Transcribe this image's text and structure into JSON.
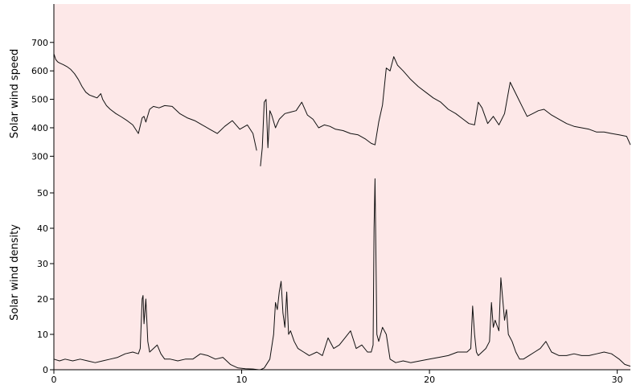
{
  "chart_data": {
    "type": "line",
    "background_color": "#fde8e8",
    "line_color": "#111111",
    "x_axis": {
      "ticks": [
        0,
        10,
        20,
        30
      ],
      "range": [
        0,
        30.7
      ]
    },
    "panels": [
      {
        "id": "speed",
        "ylabel": "Solar wind speed",
        "ticks": [
          300,
          400,
          500,
          600,
          700
        ],
        "range": [
          270,
          770
        ],
        "x": [
          0,
          0.1,
          0.2,
          0.3,
          0.5,
          0.7,
          0.9,
          1.1,
          1.3,
          1.5,
          1.7,
          1.9,
          2.1,
          2.3,
          2.5,
          2.6,
          2.8,
          3.0,
          3.3,
          3.6,
          3.9,
          4.2,
          4.5,
          4.7,
          4.8,
          4.9,
          5.1,
          5.3,
          5.6,
          5.9,
          6.3,
          6.7,
          7.1,
          7.5,
          7.9,
          8.3,
          8.7,
          9.1,
          9.5,
          9.9,
          10.3,
          10.6,
          10.8
        ],
        "y": [
          660,
          640,
          632,
          628,
          622,
          615,
          605,
          590,
          570,
          545,
          525,
          515,
          510,
          505,
          520,
          500,
          478,
          465,
          450,
          438,
          425,
          410,
          380,
          435,
          440,
          420,
          465,
          475,
          470,
          478,
          475,
          450,
          435,
          425,
          410,
          395,
          380,
          405,
          425,
          395,
          410,
          380,
          320
        ],
        "x2": [
          11.0,
          11.1,
          11.2,
          11.3,
          11.4,
          11.5,
          11.6,
          11.8,
          12.0,
          12.3,
          12.6,
          12.9,
          13.2,
          13.5,
          13.8,
          14.1,
          14.4,
          14.7,
          15.0,
          15.4,
          15.8,
          16.2,
          16.6,
          16.9,
          17.1,
          17.3,
          17.5,
          17.7,
          17.9,
          18.1,
          18.3,
          18.6,
          19.0,
          19.4,
          19.8,
          20.2,
          20.6,
          21.0,
          21.4,
          21.8,
          22.1,
          22.4,
          22.6,
          22.8,
          23.1,
          23.4,
          23.7,
          24.0,
          24.3,
          24.6,
          24.9,
          25.2,
          25.5,
          25.8,
          26.1,
          26.5,
          26.9,
          27.3,
          27.7,
          28.1,
          28.5,
          28.9,
          29.3,
          29.7,
          30.1,
          30.5,
          30.7
        ],
        "y2": [
          265,
          330,
          490,
          500,
          330,
          460,
          445,
          400,
          430,
          450,
          455,
          460,
          490,
          445,
          430,
          400,
          410,
          405,
          395,
          390,
          380,
          375,
          360,
          345,
          340,
          420,
          480,
          610,
          600,
          650,
          620,
          600,
          570,
          545,
          525,
          505,
          490,
          465,
          450,
          430,
          415,
          410,
          490,
          470,
          415,
          440,
          410,
          450,
          560,
          520,
          480,
          440,
          450,
          460,
          465,
          445,
          430,
          415,
          405,
          400,
          395,
          385,
          385,
          380,
          375,
          370,
          340
        ]
      },
      {
        "id": "density",
        "ylabel": "Solar wind density",
        "ticks": [
          0,
          10,
          20,
          30,
          40,
          50
        ],
        "range": [
          0,
          55
        ],
        "x": [
          0,
          0.3,
          0.6,
          1.0,
          1.4,
          1.8,
          2.2,
          2.6,
          3.0,
          3.4,
          3.8,
          4.2,
          4.5,
          4.6,
          4.7,
          4.75,
          4.8,
          4.9,
          5.0,
          5.1,
          5.3,
          5.5,
          5.7,
          5.9,
          6.2,
          6.6,
          7.0,
          7.4,
          7.8,
          8.2,
          8.6,
          9.0,
          9.4,
          9.8,
          10.2,
          10.6,
          10.9
        ],
        "y": [
          3,
          2.5,
          3,
          2.5,
          3,
          2.5,
          2,
          2.5,
          3,
          3.5,
          4.5,
          5,
          4.5,
          6,
          20,
          21,
          13,
          20,
          8,
          5,
          6,
          7,
          4.5,
          3,
          3,
          2.5,
          3,
          3,
          4.5,
          4,
          3,
          3.5,
          1.5,
          0.5,
          0.3,
          0.2,
          0
        ],
        "x2": [
          11.0,
          11.2,
          11.5,
          11.7,
          11.8,
          11.9,
          12.0,
          12.1,
          12.2,
          12.3,
          12.4,
          12.5,
          12.6,
          12.8,
          13.0,
          13.3,
          13.6,
          14.0,
          14.3,
          14.6,
          14.9,
          15.2,
          15.5,
          15.8,
          16.1,
          16.4,
          16.7,
          16.9,
          17.0,
          17.05,
          17.1,
          17.2,
          17.3,
          17.5,
          17.7,
          17.9,
          18.2,
          18.6,
          19.0,
          19.5,
          20.0,
          20.5,
          21.0,
          21.5,
          22.0,
          22.2,
          22.3,
          22.4,
          22.5,
          22.6,
          22.8,
          23.0,
          23.2,
          23.3,
          23.4,
          23.5,
          23.7,
          23.8,
          23.9,
          24.0,
          24.1,
          24.2,
          24.4,
          24.6,
          24.8,
          25.0,
          25.3,
          25.6,
          25.9,
          26.2,
          26.5,
          26.9,
          27.3,
          27.7,
          28.1,
          28.5,
          28.9,
          29.3,
          29.7,
          30.1,
          30.4,
          30.7
        ],
        "y2": [
          0,
          0.5,
          3,
          10,
          19,
          17,
          22,
          25,
          16,
          12,
          22,
          10,
          11,
          8,
          6,
          5,
          4,
          5,
          4,
          9,
          6,
          7,
          9,
          11,
          6,
          7,
          5,
          5,
          7,
          40,
          54,
          10,
          8,
          12,
          10,
          3,
          2,
          2.5,
          2,
          2.5,
          3,
          3.5,
          4,
          5,
          5,
          6,
          18,
          10,
          5,
          4,
          5,
          6,
          8,
          19,
          12,
          14,
          11,
          26,
          20,
          14,
          17,
          10,
          8,
          5,
          3,
          3,
          4,
          5,
          6,
          8,
          5,
          4,
          4,
          4.5,
          4,
          4,
          4.5,
          5,
          4.5,
          3,
          1.5,
          1
        ]
      }
    ]
  }
}
